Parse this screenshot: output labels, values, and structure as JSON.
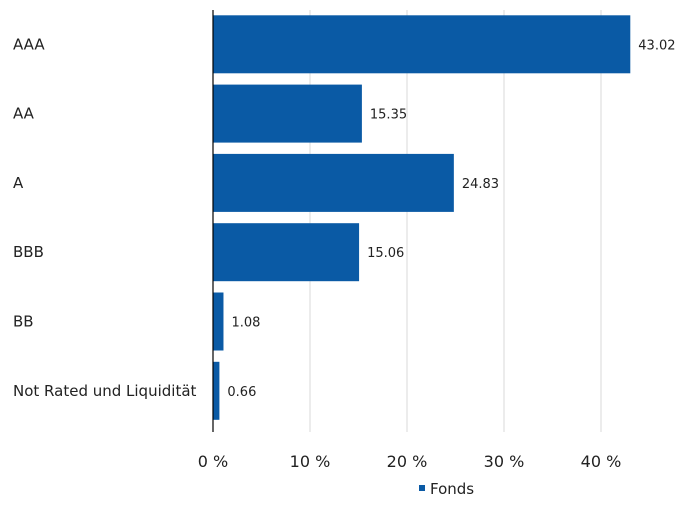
{
  "chart_data": {
    "type": "bar",
    "orientation": "horizontal",
    "categories": [
      "AAA",
      "AA",
      "A",
      "BBB",
      "BB",
      "Not Rated und Liquidität"
    ],
    "series": [
      {
        "name": "Fonds",
        "values": [
          43.02,
          15.35,
          24.83,
          15.06,
          1.08,
          0.66
        ]
      }
    ],
    "data_labels": [
      "43.02",
      "15.35",
      "24.83",
      "15.06",
      "1.08",
      "0.66"
    ],
    "x_ticks": [
      0,
      10,
      20,
      30,
      40
    ],
    "x_tick_labels": [
      "0 %",
      "10 %",
      "20 %",
      "30 %",
      "40 %"
    ],
    "xlim": [
      0,
      48
    ],
    "grid": true,
    "legend_position": "bottom-center",
    "colors": {
      "bar": "#0a5aa5",
      "grid": "#d9d9d9",
      "axis": "#000000"
    }
  }
}
